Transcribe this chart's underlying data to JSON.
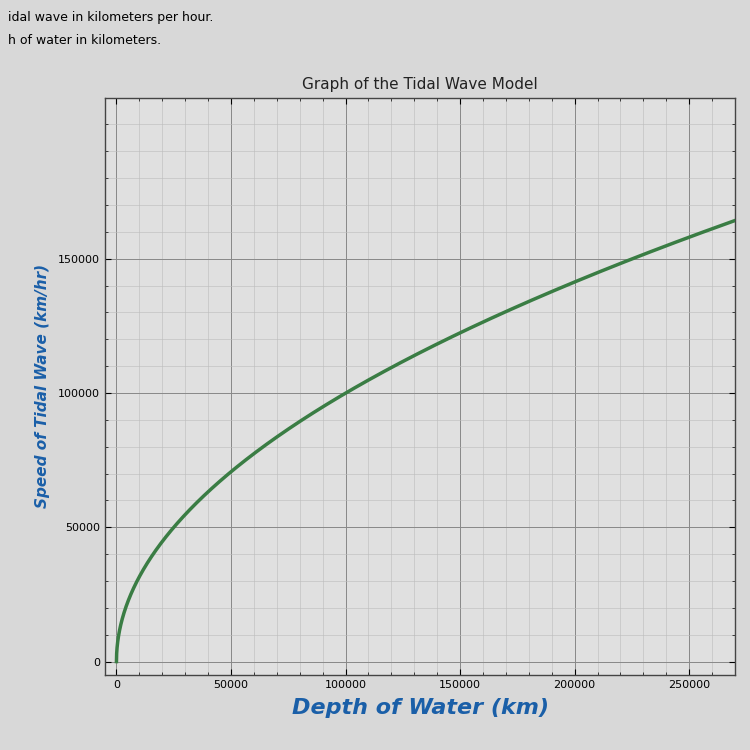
{
  "title": "Graph of the Tidal Wave Model",
  "xlabel": "Depth of Water (km)",
  "ylabel": "Speed of Tidal Wave (km/hr)",
  "xlabel_color": "#1a5fa8",
  "ylabel_color": "#1a5fa8",
  "title_color": "#222222",
  "title_fontsize": 11,
  "xlabel_fontsize": 16,
  "ylabel_fontsize": 11,
  "xlim": [
    -5000,
    270000
  ],
  "ylim": [
    -5000,
    210000
  ],
  "xticks": [
    0,
    50000,
    100000,
    150000,
    200000,
    250000
  ],
  "yticks": [
    0,
    50000,
    100000,
    150000
  ],
  "curve_color": "#3a7d44",
  "curve_linewidth": 2.5,
  "bg_color": "#e8e8e8",
  "plot_bg_color": "#e0e0e0",
  "grid_major_color": "#888888",
  "grid_major_linewidth": 0.7,
  "grid_minor_color": "#bbbbbb",
  "grid_minor_linewidth": 0.4,
  "scale_factor": 316.0,
  "x_start": 0,
  "x_end": 270000,
  "top_text_line1": "idal wave in kilometers per hour.",
  "top_text_line2": "h of water in kilometers.",
  "ytick_labels": [
    "0",
    "50000",
    "100000",
    "150000"
  ],
  "xtick_labels": [
    "0",
    "50000",
    "100000",
    "150000",
    "200000",
    "250000"
  ]
}
